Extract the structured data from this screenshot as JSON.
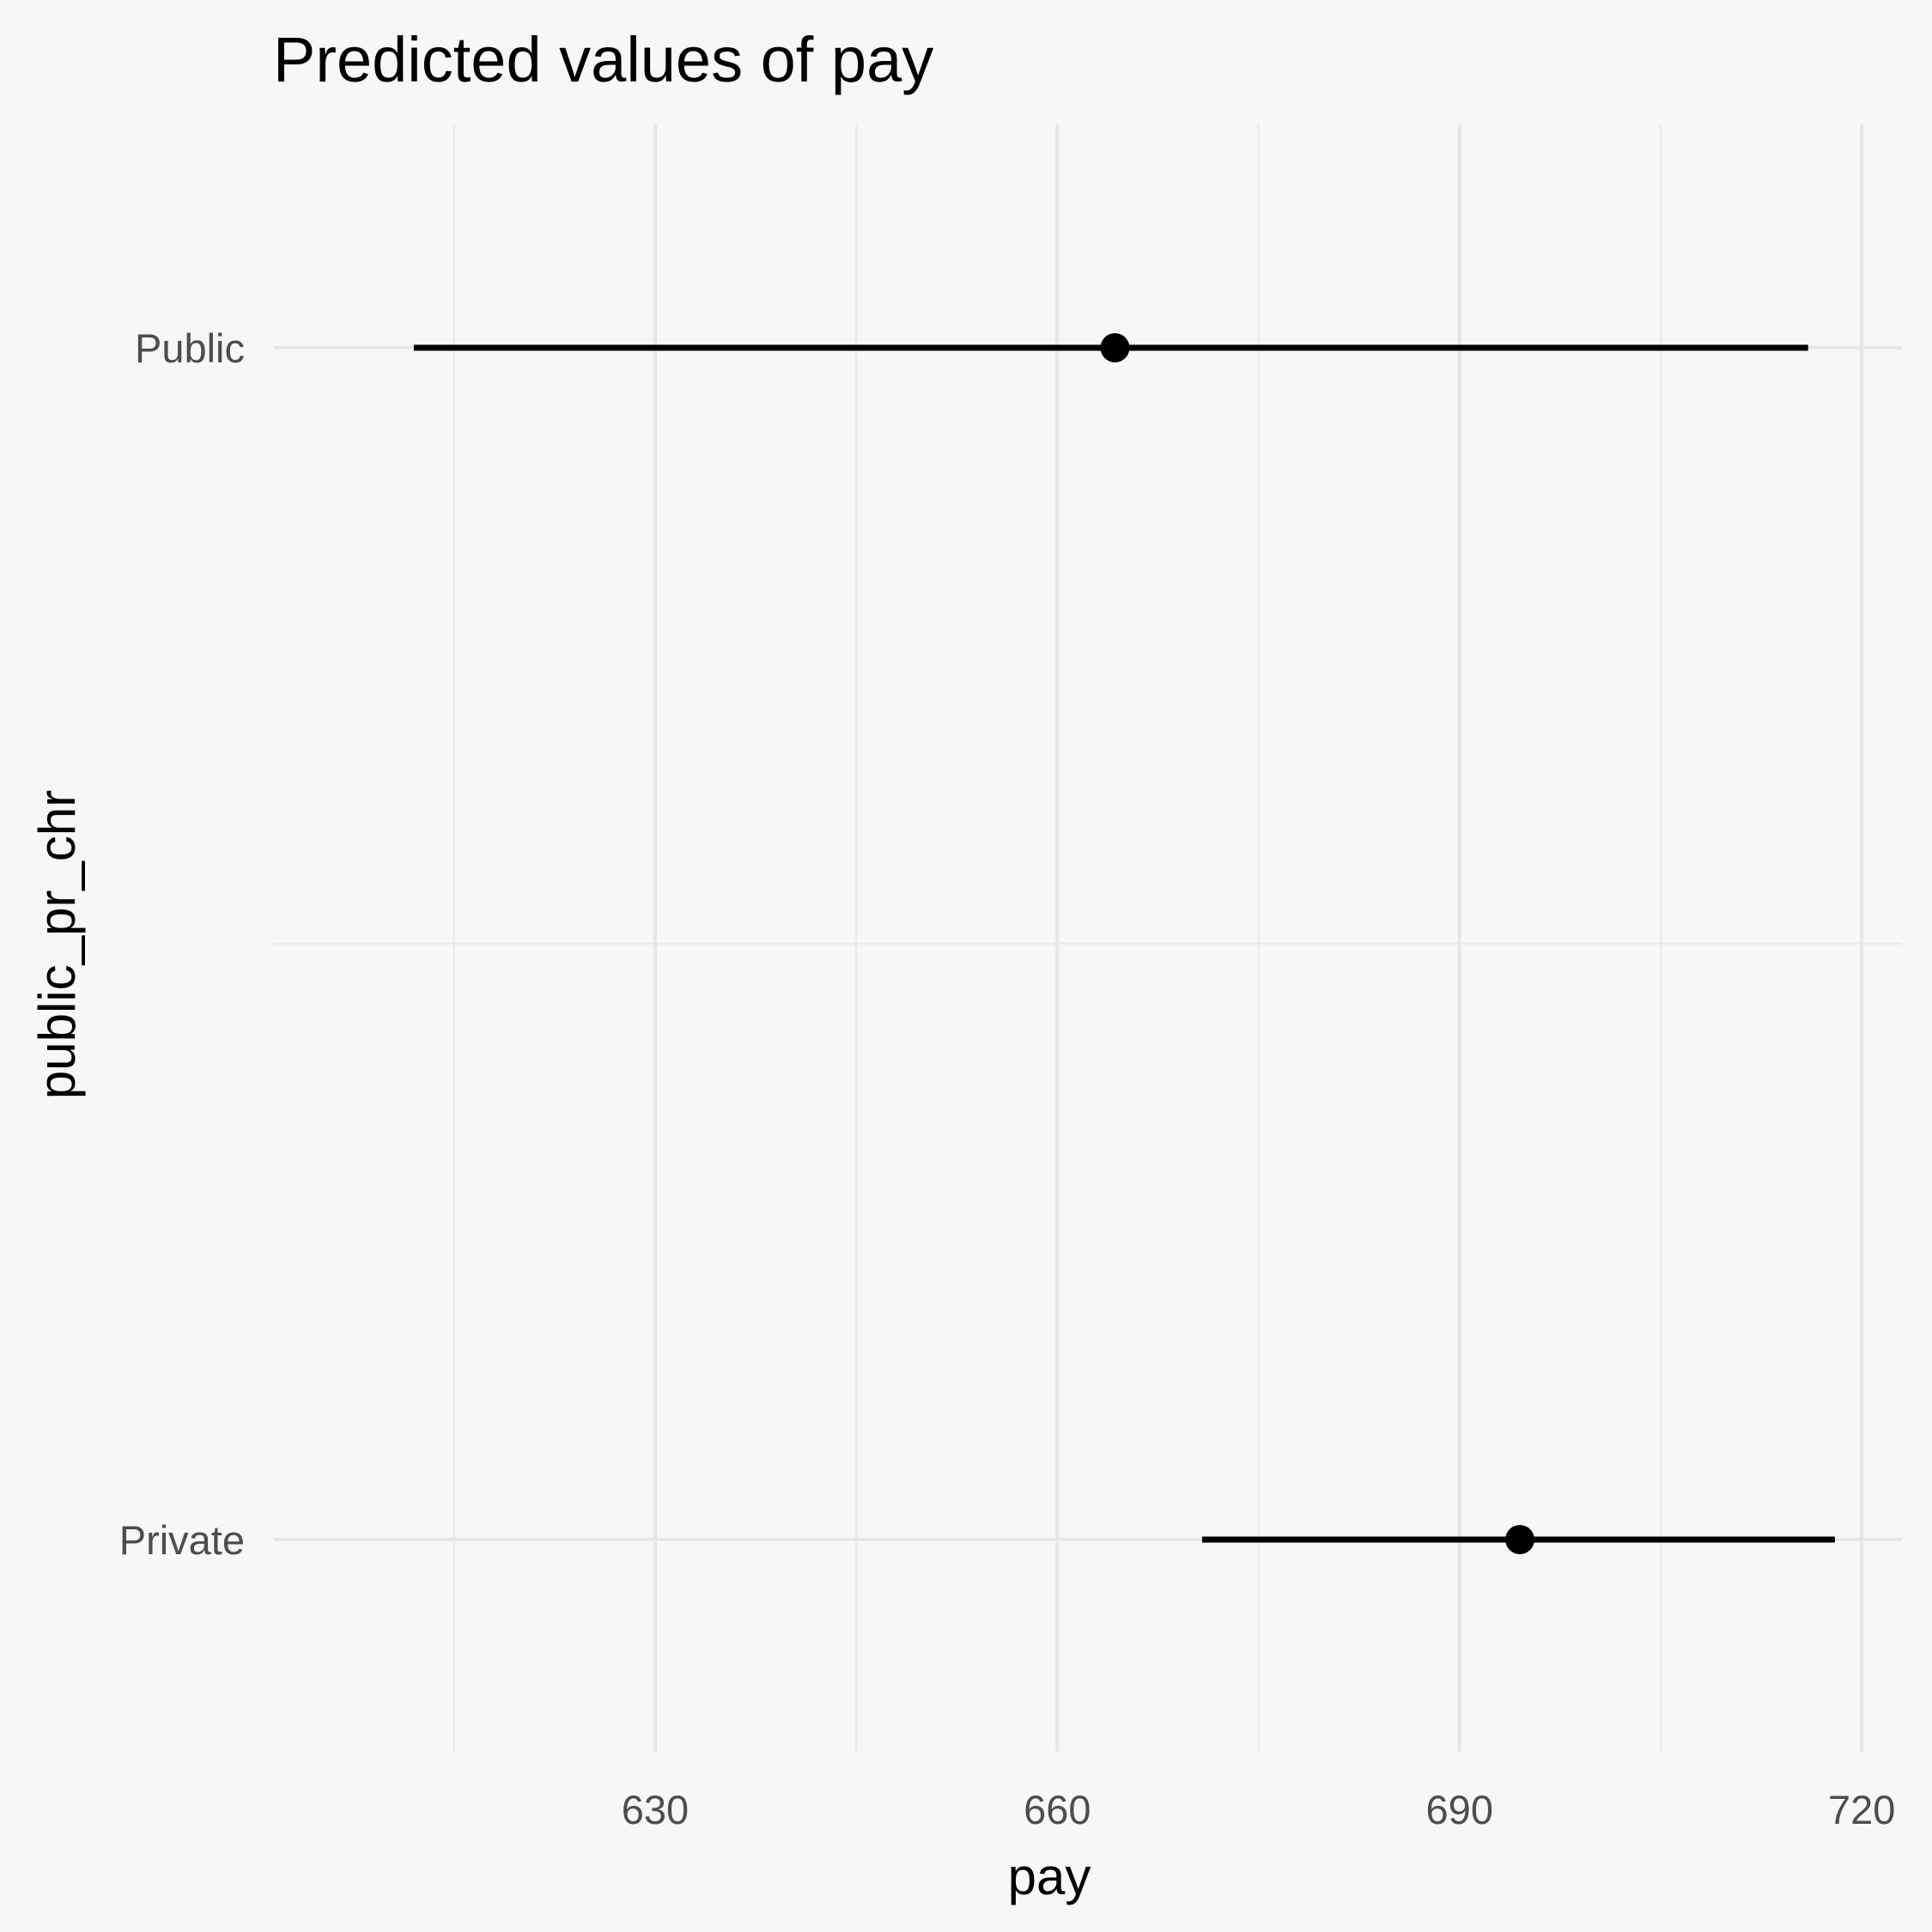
{
  "chart_data": {
    "type": "scatter",
    "title": "Predicted values of pay",
    "xlabel": "pay",
    "ylabel": "public_pr_chr",
    "categories": [
      "Public",
      "Private"
    ],
    "series": [
      {
        "points": [
          {
            "category": "Public",
            "x": 664.3,
            "low": 612.0,
            "high": 716.0
          },
          {
            "category": "Private",
            "x": 694.5,
            "low": 670.8,
            "high": 718.0
          }
        ]
      }
    ],
    "xlim": [
      601.5,
      723.0
    ],
    "xticks": [
      630,
      660,
      690,
      720
    ],
    "xminor": [
      615,
      645,
      675,
      705
    ],
    "grid": true,
    "legend": "none",
    "colors": {
      "background": "#f7f7f7",
      "grid": "#e6e6e6",
      "marks": "#000000",
      "tick_text": "#4d4d4d"
    }
  }
}
